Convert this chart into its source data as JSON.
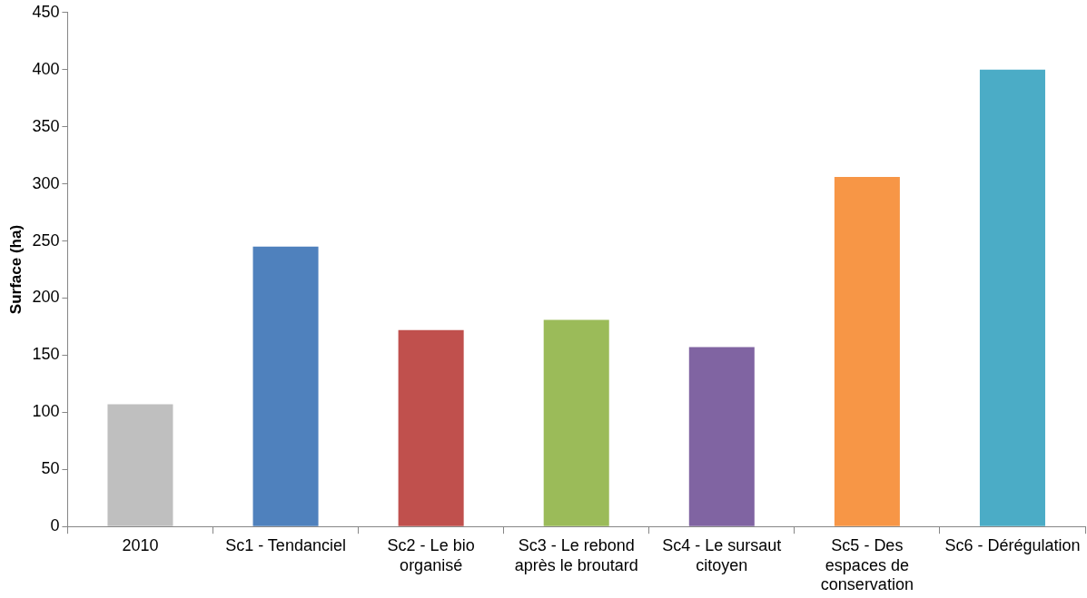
{
  "chart_data": {
    "type": "bar",
    "ylabel": "Surface (ha)",
    "categories": [
      "2010",
      "Sc1 - Tendanciel",
      "Sc2 - Le bio organisé",
      "Sc3 - Le rebond après le broutard",
      "Sc4 - Le sursaut citoyen",
      "Sc5 - Des espaces de conservation",
      "Sc6 - Dérégulation"
    ],
    "values": [
      107,
      245,
      172,
      181,
      157,
      306,
      400
    ],
    "colors": [
      "#bfbfbf",
      "#4f81bd",
      "#c0504d",
      "#9bbb59",
      "#8064a2",
      "#f79646",
      "#4bacc6"
    ],
    "ylim": [
      0,
      450
    ],
    "yticks": [
      0,
      50,
      100,
      150,
      200,
      250,
      300,
      350,
      400,
      450
    ],
    "grid": false,
    "legend": false
  }
}
